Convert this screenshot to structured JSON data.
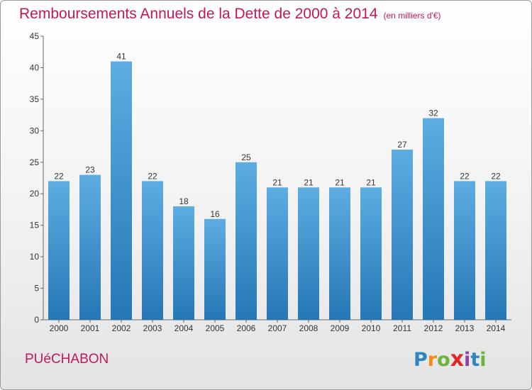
{
  "header": {
    "title": "Remboursements Annuels de la Dette de 2000 à 2014",
    "unit": "(en milliers d'€)"
  },
  "footer": {
    "commune": "PUéCHABON",
    "logo": [
      "P",
      "r",
      "o",
      "x",
      "i",
      "t",
      "i"
    ]
  },
  "colors": {
    "accent": "#c2185b",
    "bar_top": "#5dade2",
    "bar_bottom": "#2577b5"
  },
  "chart_data": {
    "type": "bar",
    "title": "Remboursements Annuels de la Dette de 2000 à 2014",
    "subtitle": "(en milliers d'€)",
    "xlabel": "",
    "ylabel": "",
    "ylim": [
      0,
      45
    ],
    "yticks": [
      0,
      5,
      10,
      15,
      20,
      25,
      30,
      35,
      40,
      45
    ],
    "grid": false,
    "categories": [
      "2000",
      "2001",
      "2002",
      "2003",
      "2004",
      "2005",
      "2006",
      "2007",
      "2008",
      "2009",
      "2010",
      "2011",
      "2012",
      "2013",
      "2014"
    ],
    "values": [
      22,
      23,
      41,
      22,
      18,
      16,
      25,
      21,
      21,
      21,
      21,
      27,
      32,
      22,
      22
    ]
  }
}
